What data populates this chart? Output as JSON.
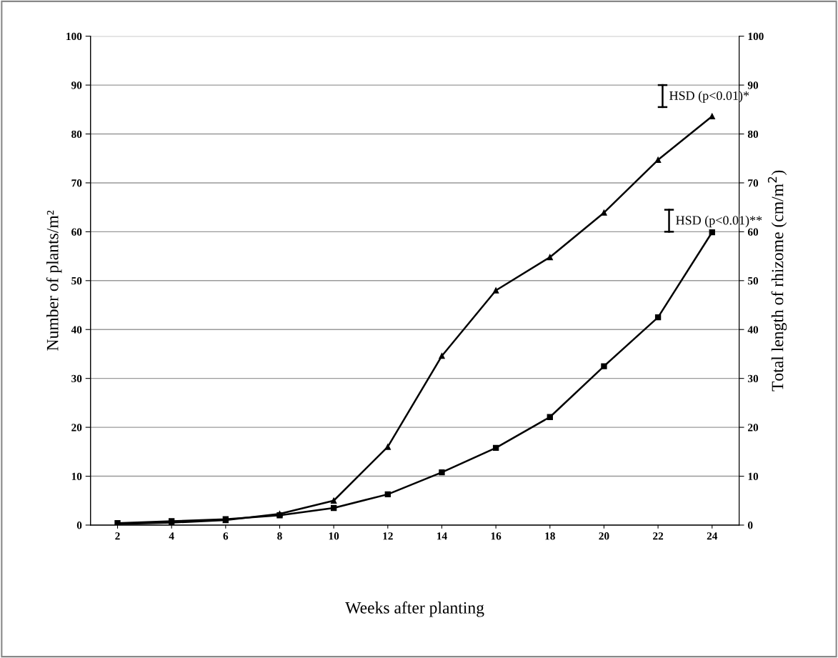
{
  "chart_data": {
    "type": "line",
    "xlabel": "Weeks after planting",
    "ylabel": "Number of plants/m²",
    "y2label": "Total length of rhizome (cm/m$^{2}$)",
    "categories": [
      "2",
      "4",
      "6",
      "8",
      "10",
      "12",
      "14",
      "16",
      "18",
      "20",
      "22",
      "24"
    ],
    "series": [
      {
        "color": "#000000",
        "marker": "triangle",
        "values": [
          0.2,
          0.5,
          1.0,
          2.3,
          5.0,
          16.0,
          34.6,
          48.0,
          54.8,
          63.9,
          74.7,
          83.6
        ]
      },
      {
        "color": "#000000",
        "marker": "square",
        "values": [
          0.4,
          0.8,
          1.2,
          2.0,
          3.5,
          6.3,
          10.8,
          15.8,
          22.1,
          32.5,
          42.5,
          59.9
        ]
      }
    ],
    "ylim": [
      0,
      100
    ],
    "yticks": [
      0,
      10,
      20,
      30,
      40,
      50,
      60,
      70,
      80,
      90,
      100
    ],
    "y2lim": [
      0,
      100
    ],
    "y2ticks": [
      0,
      10,
      20,
      30,
      40,
      50,
      60,
      70,
      80,
      90,
      100
    ],
    "grid": "y",
    "legend": false,
    "line_style": "solid",
    "annotations": [
      "HSD (p<0.01)*",
      "HSD (p<0.01)**"
    ]
  }
}
